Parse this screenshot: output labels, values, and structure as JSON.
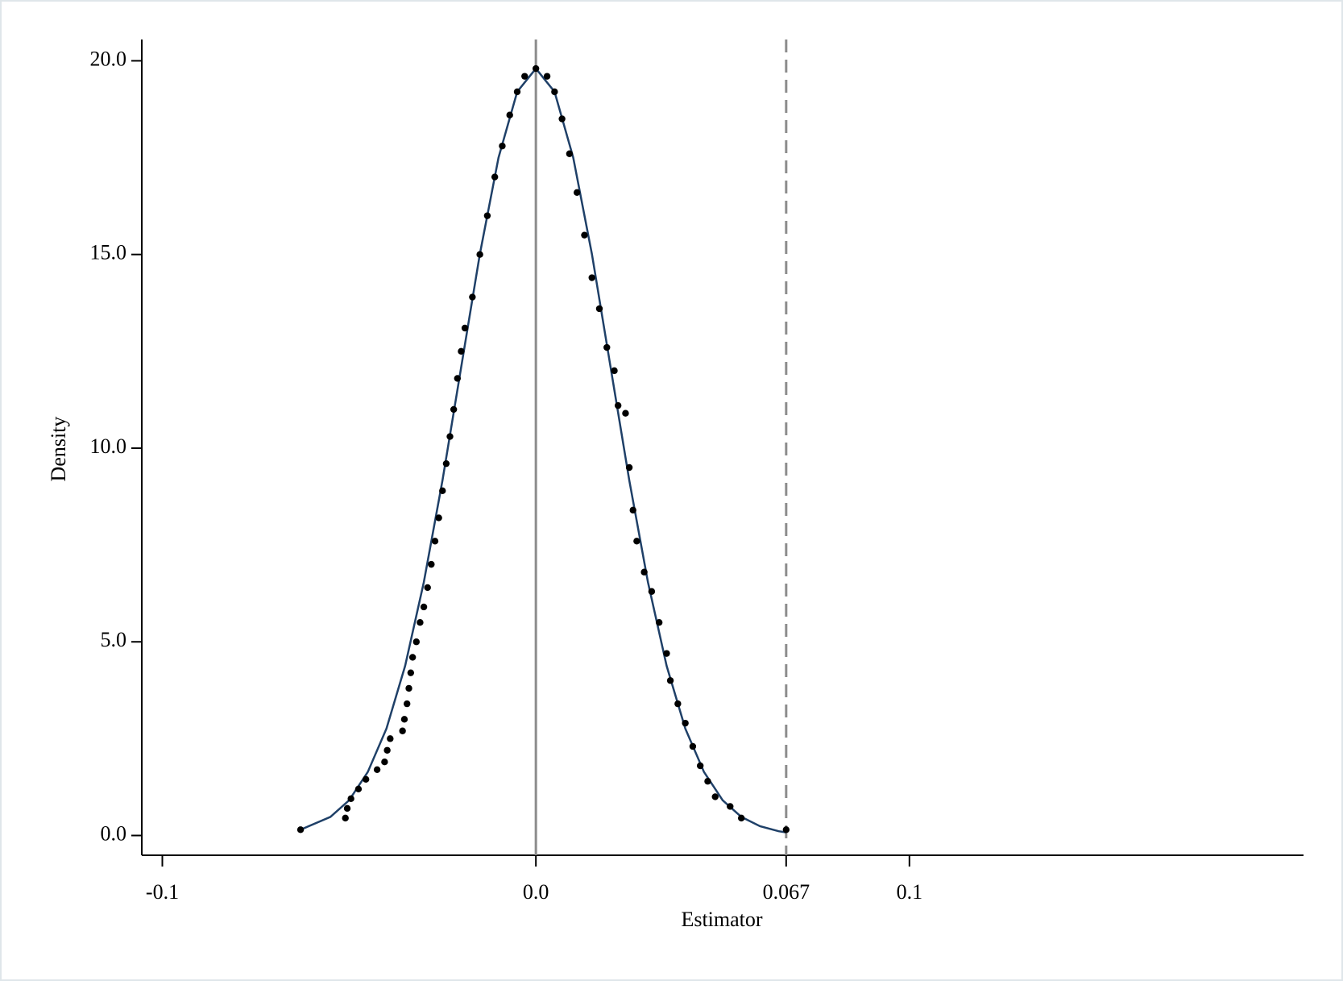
{
  "chart_data": {
    "type": "scatter",
    "xlabel": "Estimator",
    "ylabel": "Density",
    "xlim": [
      -0.1055,
      0.2055
    ],
    "ylim": [
      -0.51,
      20.55
    ],
    "xticks": [
      -0.1,
      {
        "value": 0,
        "label": "0.0"
      },
      0.067,
      0.1
    ],
    "yticks": [
      {
        "value": 0,
        "label": "0.0"
      },
      {
        "value": 5,
        "label": "5.0"
      },
      {
        "value": 10,
        "label": "10.0"
      },
      {
        "value": 15,
        "label": "15.0"
      },
      {
        "value": 20,
        "label": "20.0"
      }
    ],
    "vlines": [
      {
        "value": 0,
        "style": "solid",
        "color": "#8c8c8c"
      },
      {
        "value": 0.067,
        "style": "dashed",
        "color": "#8c8c8c"
      }
    ],
    "series": [
      {
        "type": "line",
        "color": "#1f4068",
        "x": [
          -0.063,
          -0.055,
          -0.05,
          -0.045,
          -0.04,
          -0.035,
          -0.03,
          -0.025,
          -0.02,
          -0.015,
          -0.01,
          -0.005,
          0,
          0.005,
          0.01,
          0.015,
          0.02,
          0.025,
          0.03,
          0.035,
          0.04,
          0.045,
          0.05,
          0.055,
          0.06,
          0.065,
          0.067
        ],
        "values": [
          0.15,
          0.48,
          0.91,
          1.64,
          2.76,
          4.38,
          6.54,
          9.17,
          12.09,
          15.01,
          17.5,
          19.2,
          19.8,
          19.2,
          17.5,
          15.01,
          12.09,
          9.17,
          6.54,
          4.38,
          2.76,
          1.64,
          0.91,
          0.48,
          0.24,
          0.11,
          0.08
        ]
      },
      {
        "type": "scatter",
        "color": "#000000",
        "x": [
          -0.063,
          -0.051,
          -0.0505,
          -0.0495,
          -0.0475,
          -0.0455,
          -0.0425,
          -0.0405,
          -0.0398,
          -0.039,
          -0.0357,
          -0.0352,
          -0.0345,
          -0.034,
          -0.0335,
          -0.033,
          -0.032,
          -0.031,
          -0.03,
          -0.029,
          -0.028,
          -0.027,
          -0.026,
          -0.025,
          -0.024,
          -0.023,
          -0.022,
          -0.021,
          -0.02,
          -0.019,
          -0.017,
          -0.015,
          -0.013,
          -0.011,
          -0.009,
          -0.007,
          -0.005,
          -0.003,
          0,
          0.003,
          0.005,
          0.007,
          0.009,
          0.011,
          0.013,
          0.015,
          0.017,
          0.019,
          0.021,
          0.022,
          0.024,
          0.025,
          0.026,
          0.027,
          0.029,
          0.031,
          0.033,
          0.035,
          0.036,
          0.038,
          0.04,
          0.042,
          0.044,
          0.046,
          0.048,
          0.052,
          0.055,
          0.067
        ],
        "values": [
          0.15,
          0.45,
          0.7,
          0.95,
          1.2,
          1.45,
          1.7,
          1.9,
          2.2,
          2.5,
          2.7,
          3.0,
          3.4,
          3.8,
          4.2,
          4.6,
          5.0,
          5.5,
          5.9,
          6.4,
          7.0,
          7.6,
          8.2,
          8.9,
          9.6,
          10.3,
          11.0,
          11.8,
          12.5,
          13.1,
          13.9,
          15.0,
          16.0,
          17.0,
          17.8,
          18.6,
          19.2,
          19.6,
          19.8,
          19.6,
          19.2,
          18.5,
          17.6,
          16.6,
          15.5,
          14.4,
          13.6,
          12.6,
          12.0,
          11.1,
          10.9,
          9.5,
          8.4,
          7.6,
          6.8,
          6.3,
          5.5,
          4.7,
          4.0,
          3.4,
          2.9,
          2.3,
          1.8,
          1.4,
          1.0,
          0.75,
          0.45,
          0.15
        ]
      }
    ]
  }
}
